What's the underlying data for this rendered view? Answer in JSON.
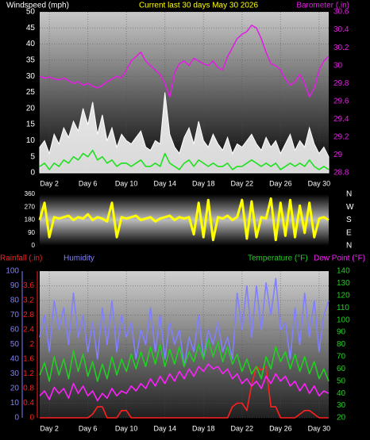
{
  "chart_data": [
    {
      "type": "line",
      "title": "Current last 30 days May 30 2026",
      "xlim": [
        1,
        31
      ],
      "xticks": [
        {
          "value": 2,
          "label": "Day 2"
        },
        {
          "value": 6,
          "label": "Day 6"
        },
        {
          "value": 10,
          "label": "Day 10"
        },
        {
          "value": 14,
          "label": "Day 14"
        },
        {
          "value": 18,
          "label": "Day 18"
        },
        {
          "value": 22,
          "label": "Day 22"
        },
        {
          "value": 26,
          "label": "Day 26"
        },
        {
          "value": 30,
          "label": "Day 30"
        }
      ],
      "ylim": [
        0,
        50
      ],
      "yticks": [
        0,
        5,
        10,
        15,
        20,
        25,
        30,
        35,
        40,
        45,
        50
      ],
      "ytick_color": "#ffffff",
      "y2lim": [
        28.8,
        30.6
      ],
      "y2ticks": [
        28.8,
        29,
        29.2,
        29.4,
        29.6,
        29.8,
        30,
        30.2,
        30.4,
        30.6
      ],
      "y2tick_color": "#e020e0",
      "grid": true,
      "x": [
        1,
        1.5,
        2,
        2.5,
        3,
        3.5,
        4,
        4.5,
        5,
        5.5,
        6,
        6.5,
        7,
        7.5,
        8,
        8.5,
        9,
        9.5,
        10,
        10.5,
        11,
        11.5,
        12,
        12.5,
        13,
        13.5,
        14,
        14.5,
        15,
        15.5,
        16,
        16.5,
        17,
        17.5,
        18,
        18.5,
        19,
        19.5,
        20,
        20.5,
        21,
        21.5,
        22,
        22.5,
        23,
        23.5,
        24,
        24.5,
        25,
        25.5,
        26,
        26.5,
        27,
        27.5,
        28,
        28.5,
        29,
        29.5,
        30,
        30.5,
        31
      ],
      "series": [
        {
          "name": "Windspeed (mph)",
          "color": "#ffffff",
          "style": "area",
          "axis": "y",
          "values": [
            8,
            10,
            6,
            12,
            9,
            14,
            11,
            16,
            13,
            20,
            15,
            22,
            12,
            18,
            10,
            14,
            8,
            12,
            10,
            9,
            11,
            13,
            8,
            7,
            10,
            9,
            25,
            12,
            8,
            6,
            11,
            14,
            9,
            16,
            10,
            8,
            12,
            9,
            7,
            11,
            6,
            9,
            8,
            10,
            12,
            9,
            7,
            11,
            8,
            10,
            6,
            9,
            12,
            7,
            10,
            8,
            14,
            9,
            6,
            8,
            5
          ]
        },
        {
          "color": "#20e020",
          "style": "line",
          "axis": "y",
          "values": [
            2,
            3,
            1,
            3,
            2,
            4,
            3,
            5,
            4,
            6,
            5,
            7,
            4,
            5,
            3,
            4,
            2,
            3,
            3,
            2,
            3,
            4,
            2,
            2,
            3,
            2,
            6,
            3,
            2,
            1,
            3,
            4,
            2,
            4,
            3,
            2,
            3,
            2,
            2,
            3,
            1,
            2,
            2,
            3,
            4,
            3,
            2,
            3,
            2,
            3,
            1,
            2,
            3,
            2,
            3,
            2,
            4,
            2,
            1,
            2,
            1
          ]
        },
        {
          "name": "Barometer (.in)",
          "color": "#e020e0",
          "style": "line",
          "axis": "y2",
          "values": [
            29.88,
            29.86,
            29.87,
            29.85,
            29.84,
            29.86,
            29.83,
            29.8,
            29.82,
            29.78,
            29.8,
            29.77,
            29.75,
            29.78,
            29.82,
            29.85,
            29.88,
            29.86,
            29.95,
            30.05,
            30.1,
            30.15,
            30.05,
            30,
            29.95,
            29.9,
            29.8,
            29.65,
            29.92,
            30.02,
            30.05,
            30,
            30.08,
            30.05,
            30.02,
            30,
            30.05,
            29.98,
            29.95,
            30.1,
            30.2,
            30.3,
            30.35,
            30.38,
            30.45,
            30.42,
            30.3,
            30.15,
            30.02,
            30,
            29.95,
            29.85,
            29.78,
            29.82,
            29.9,
            29.8,
            29.65,
            29.75,
            29.95,
            30.05,
            30.1
          ]
        }
      ]
    },
    {
      "type": "line",
      "xlim": [
        1,
        31
      ],
      "ylim": [
        0,
        360
      ],
      "yticks": [
        0,
        90,
        180,
        270,
        360
      ],
      "ytick_color": "#ffffff",
      "y2lim": [
        0,
        360
      ],
      "y2ticks": [
        {
          "value": 0,
          "label": "N"
        },
        {
          "value": 90,
          "label": "E"
        },
        {
          "value": 180,
          "label": "S"
        },
        {
          "value": 270,
          "label": "W"
        },
        {
          "value": 360,
          "label": "N"
        }
      ],
      "y2tick_color": "#ffffff",
      "grid": false,
      "x": [
        1,
        1.5,
        2,
        2.5,
        3,
        3.5,
        4,
        4.5,
        5,
        5.5,
        6,
        6.5,
        7,
        7.5,
        8,
        8.5,
        9,
        9.5,
        10,
        10.5,
        11,
        11.5,
        12,
        12.5,
        13,
        13.5,
        14,
        14.5,
        15,
        15.5,
        16,
        16.5,
        17,
        17.5,
        18,
        18.5,
        19,
        19.5,
        20,
        20.5,
        21,
        21.5,
        22,
        22.5,
        23,
        23.5,
        24,
        24.5,
        25,
        25.5,
        26,
        26.5,
        27,
        27.5,
        28,
        28.5,
        29,
        29.5,
        30,
        30.5,
        31
      ],
      "series": [
        {
          "color": "#ffff00",
          "style": "line",
          "axis": "y",
          "values": [
            180,
            300,
            60,
            200,
            190,
            200,
            210,
            180,
            200,
            190,
            220,
            180,
            200,
            190,
            170,
            300,
            60,
            200,
            190,
            200,
            210,
            180,
            190,
            200,
            170,
            190,
            200,
            210,
            180,
            200,
            190,
            200,
            80,
            300,
            60,
            320,
            40,
            200,
            190,
            210,
            180,
            200,
            320,
            50,
            310,
            60,
            200,
            190,
            330,
            40,
            300,
            70,
            320,
            60,
            280,
            90,
            300,
            60,
            190,
            200,
            180
          ]
        }
      ]
    },
    {
      "type": "line",
      "xlim": [
        1,
        31
      ],
      "xticks": [
        {
          "value": 2,
          "label": "Day 2"
        },
        {
          "value": 6,
          "label": "Day 6"
        },
        {
          "value": 10,
          "label": "Day 10"
        },
        {
          "value": 14,
          "label": "Day 14"
        },
        {
          "value": 18,
          "label": "Day 18"
        },
        {
          "value": 22,
          "label": "Day 22"
        },
        {
          "value": 26,
          "label": "Day 26"
        },
        {
          "value": 30,
          "label": "Day 30"
        }
      ],
      "ylim": [
        0,
        4
      ],
      "yticks": [
        0,
        0.4,
        0.8,
        1.2,
        1.6,
        2,
        2.4,
        2.8,
        3.2,
        3.6
      ],
      "ytick_color": "#ff2020",
      "y3lim": [
        0,
        100
      ],
      "y3ticks": [
        0,
        10,
        20,
        30,
        40,
        50,
        60,
        70,
        80,
        90,
        100
      ],
      "y3tick_color": "#8080ff",
      "y2lim": [
        20,
        140
      ],
      "y2ticks": [
        20,
        30,
        40,
        50,
        60,
        70,
        80,
        90,
        100,
        110,
        120,
        130,
        140
      ],
      "y2tick_color": "#20d020",
      "grid": true,
      "x": [
        1,
        1.5,
        2,
        2.5,
        3,
        3.5,
        4,
        4.5,
        5,
        5.5,
        6,
        6.5,
        7,
        7.5,
        8,
        8.5,
        9,
        9.5,
        10,
        10.5,
        11,
        11.5,
        12,
        12.5,
        13,
        13.5,
        14,
        14.5,
        15,
        15.5,
        16,
        16.5,
        17,
        17.5,
        18,
        18.5,
        19,
        19.5,
        20,
        20.5,
        21,
        21.5,
        22,
        22.5,
        23,
        23.5,
        24,
        24.5,
        25,
        25.5,
        26,
        26.5,
        27,
        27.5,
        28,
        28.5,
        29,
        29.5,
        30,
        30.5,
        31
      ],
      "series": [
        {
          "name": "Rainfall (.in)",
          "color": "#ff2020",
          "style": "line",
          "axis": "y",
          "values": [
            0,
            0,
            0,
            0,
            0,
            0,
            0,
            0,
            0,
            0,
            0,
            0.1,
            0.3,
            0.3,
            0,
            0,
            0,
            0.2,
            0.2,
            0,
            0,
            0,
            0,
            0,
            0,
            0,
            0,
            0,
            0,
            0,
            0,
            0,
            0,
            0,
            0,
            0,
            0,
            0,
            0,
            0,
            0.3,
            0.4,
            0.4,
            0.2,
            0.9,
            1.4,
            1.3,
            1.4,
            0.3,
            0.3,
            0,
            0,
            0,
            0,
            0.1,
            0.2,
            0.2,
            0.1,
            0,
            0,
            0
          ]
        },
        {
          "name": "Humidity",
          "color": "#8080ff",
          "style": "line",
          "axis": "y3",
          "values": [
            55,
            70,
            45,
            80,
            60,
            75,
            50,
            85,
            55,
            70,
            45,
            65,
            40,
            75,
            50,
            80,
            45,
            70,
            55,
            65,
            40,
            60,
            50,
            75,
            45,
            70,
            40,
            65,
            50,
            60,
            35,
            55,
            45,
            70,
            40,
            60,
            50,
            65,
            45,
            55,
            40,
            85,
            60,
            90,
            55,
            90,
            60,
            92,
            70,
            95,
            60,
            65,
            40,
            75,
            50,
            85,
            55,
            80,
            45,
            70,
            80
          ]
        },
        {
          "name": "Temperature (°F)",
          "color": "#20d020",
          "style": "line",
          "axis": "y2",
          "values": [
            55,
            65,
            50,
            70,
            55,
            68,
            52,
            75,
            58,
            72,
            54,
            66,
            50,
            64,
            52,
            70,
            55,
            68,
            58,
            72,
            60,
            74,
            62,
            78,
            64,
            80,
            62,
            76,
            64,
            78,
            62,
            74,
            66,
            80,
            68,
            84,
            70,
            82,
            66,
            78,
            64,
            72,
            58,
            68,
            56,
            62,
            52,
            70,
            60,
            78,
            66,
            74,
            60,
            72,
            58,
            70,
            56,
            66,
            52,
            60,
            50
          ]
        },
        {
          "name": "Dew Point (°F)",
          "color": "#ff20ff",
          "style": "line",
          "axis": "y2",
          "values": [
            38,
            42,
            35,
            45,
            40,
            44,
            36,
            48,
            40,
            46,
            38,
            42,
            34,
            40,
            36,
            44,
            38,
            42,
            40,
            46,
            42,
            48,
            44,
            52,
            46,
            54,
            48,
            56,
            50,
            58,
            52,
            60,
            54,
            62,
            58,
            64,
            60,
            62,
            56,
            60,
            52,
            56,
            48,
            52,
            46,
            50,
            44,
            54,
            48,
            56,
            50,
            54,
            46,
            50,
            42,
            48,
            40,
            46,
            38,
            42,
            40
          ]
        }
      ]
    }
  ]
}
